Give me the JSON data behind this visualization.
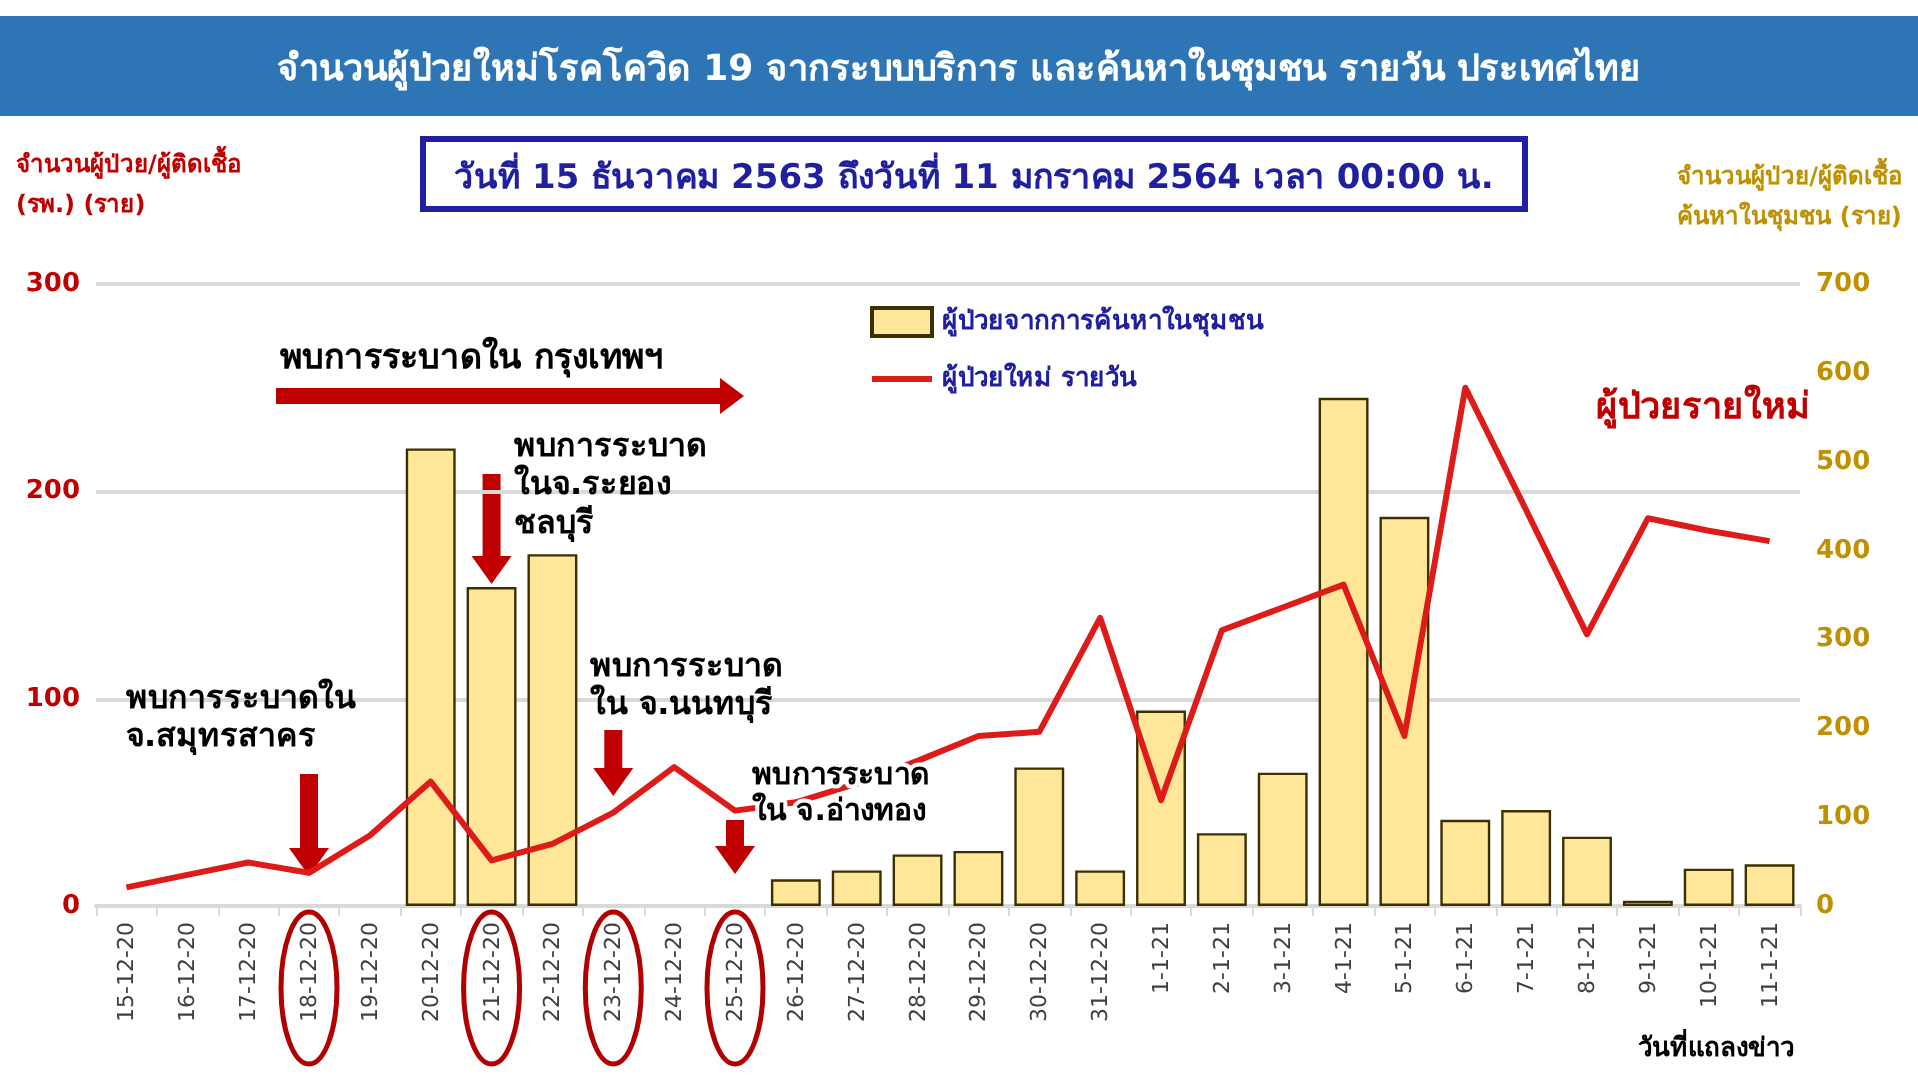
{
  "chart_data": {
    "type": "bar",
    "title": "จำนวนผู้ป่วยใหม่โรคโควิด 19 จากระบบบริการ และค้นหาในชุมชน รายวัน ประเทศไทย",
    "subtitle": "วันที่ 15 ธันวาคม 2563 ถึงวันที่ 11 มกราคม 2564 เวลา 00:00 น.",
    "xlabel": "วันที่แถลงข่าว",
    "ylabel": "จำนวนผู้ป่วย/ผู้ติดเชื้อ\n(รพ.) (ราย)",
    "y2label": "จำนวนผู้ป่วย/ผู้ติดเชื้อ\nค้นหาในชุมชน (ราย)",
    "annotations": [
      "พบการระบาดใน กรุงเทพฯ",
      "พบการระบาด\nในจ.ระยอง\nชลบุรี",
      "พบการระบาดใน\nจ.สมุทรสาคร",
      "พบการระบาด\nใน จ.นนทบุรี",
      "พบการระบาด\nใน จ.อ่างทอง",
      "ผู้ป่วยรายใหม่"
    ],
    "categories": [
      "15-12-20",
      "16-12-20",
      "17-12-20",
      "18-12-20",
      "19-12-20",
      "20-12-20",
      "21-12-20",
      "22-12-20",
      "23-12-20",
      "24-12-20",
      "25-12-20",
      "26-12-20",
      "27-12-20",
      "28-12-20",
      "29-12-20",
      "30-12-20",
      "31-12-20",
      "1-1-21",
      "2-1-21",
      "3-1-21",
      "4-1-21",
      "5-1-21",
      "6-1-21",
      "7-1-21",
      "8-1-21",
      "9-1-21",
      "10-1-21",
      "11-1-21"
    ],
    "series": [
      {
        "name": "ผู้ป่วยจากการค้นหาในชุมชน",
        "axis": "y2",
        "color": "#ffe699",
        "values": [
          null,
          null,
          null,
          null,
          null,
          515,
          359,
          396,
          null,
          null,
          null,
          30,
          40,
          58,
          62,
          156,
          40,
          220,
          82,
          150,
          572,
          438,
          97,
          108,
          78,
          6,
          42,
          47
        ]
      },
      {
        "name": "ผู้ป่วยใหม่ รายวัน",
        "type": "line",
        "color": "#dd1c1a",
        "values": [
          9,
          15,
          21,
          16,
          34,
          60,
          22,
          30,
          45,
          67,
          46,
          50,
          59,
          70,
          82,
          84,
          139,
          51,
          133,
          144,
          155,
          82,
          250,
          191,
          131,
          187,
          181,
          176
        ]
      }
    ],
    "ylim": [
      0,
      300
    ],
    "yticks": [
      0,
      100,
      200,
      300
    ],
    "y2lim": [
      0,
      700
    ],
    "y2ticks": [
      0,
      100,
      200,
      300,
      400,
      500,
      600,
      700
    ],
    "grid": "y",
    "legend": "top",
    "marker": "none",
    "line_style": "solid"
  }
}
